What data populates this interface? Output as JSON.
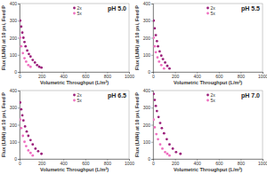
{
  "chart_data": [
    {
      "type": "scatter",
      "title": "pH 5.0",
      "x_label": "Volumetric Throughput (L/m²)",
      "y_label": "Flux (LMH) at 10 psi, Feed P",
      "xlim": [
        0,
        1000
      ],
      "ylim": [
        0,
        400
      ],
      "xticks": [
        0,
        200,
        400,
        600,
        800,
        1000
      ],
      "yticks": [
        0,
        100,
        200,
        300,
        400
      ],
      "legend": "top-right",
      "series": [
        {
          "name": "2x",
          "color": "#9b1f7a",
          "marker": "circle",
          "x": [
            5,
            15,
            25,
            35,
            45,
            55,
            70,
            85,
            100,
            120,
            140,
            160,
            180,
            200
          ],
          "values": [
            300,
            265,
            230,
            200,
            175,
            150,
            125,
            105,
            90,
            70,
            55,
            40,
            30,
            25
          ]
        },
        {
          "name": "5x",
          "color": "#ef6fc0",
          "marker": "circle",
          "x": [
            5,
            15,
            30,
            45,
            60,
            80,
            100
          ],
          "values": [
            200,
            150,
            110,
            80,
            60,
            40,
            30
          ]
        }
      ]
    },
    {
      "type": "scatter",
      "title": "pH 5.5",
      "x_label": "Volumetric Throughput (L/m²)",
      "y_label": "Flux (LMH) at 10 psi, Feed P",
      "xlim": [
        0,
        1000
      ],
      "ylim": [
        0,
        400
      ],
      "xticks": [
        0,
        200,
        400,
        600,
        800,
        1000
      ],
      "yticks": [
        0,
        100,
        200,
        300,
        400
      ],
      "legend": "top-right",
      "series": [
        {
          "name": "2x",
          "color": "#9b1f7a",
          "marker": "circle",
          "x": [
            5,
            15,
            25,
            35,
            45,
            60,
            75,
            90,
            110,
            130,
            150
          ],
          "values": [
            300,
            255,
            215,
            180,
            150,
            120,
            95,
            75,
            55,
            35,
            20
          ]
        },
        {
          "name": "5x",
          "color": "#ef6fc0",
          "marker": "circle",
          "x": [
            5,
            15,
            25,
            40,
            55,
            75,
            100
          ],
          "values": [
            200,
            150,
            115,
            85,
            60,
            40,
            20
          ]
        }
      ]
    },
    {
      "type": "scatter",
      "title": "pH 6.5",
      "x_label": "Volumetric Throughput (L/m²)",
      "y_label": "Flux (LMH) at 10 psi, Feed P",
      "xlim": [
        0,
        1000
      ],
      "ylim": [
        0,
        400
      ],
      "xticks": [
        0,
        200,
        400,
        600,
        800,
        1000
      ],
      "yticks": [
        0,
        100,
        200,
        300,
        400
      ],
      "legend": "top-right",
      "series": [
        {
          "name": "2x",
          "color": "#9b1f7a",
          "marker": "circle",
          "x": [
            5,
            15,
            25,
            35,
            50,
            65,
            80,
            100,
            120,
            145,
            170,
            200
          ],
          "values": [
            330,
            290,
            255,
            225,
            190,
            160,
            135,
            110,
            85,
            60,
            45,
            30
          ]
        },
        {
          "name": "5x",
          "color": "#ef6fc0",
          "marker": "circle",
          "x": [
            5,
            15,
            30,
            45,
            60,
            80,
            100,
            120
          ],
          "values": [
            230,
            180,
            135,
            100,
            75,
            50,
            35,
            20
          ]
        }
      ]
    },
    {
      "type": "scatter",
      "title": "pH 7.0",
      "x_label": "Volumetric Throughput (L/m²)",
      "y_label": "Flux (LMH) at 10 psi, Feed P",
      "xlim": [
        0,
        1000
      ],
      "ylim": [
        0,
        400
      ],
      "xticks": [
        0,
        200,
        400,
        600,
        800,
        1000
      ],
      "yticks": [
        0,
        100,
        200,
        300,
        400
      ],
      "legend": "top-right",
      "series": [
        {
          "name": "2x",
          "color": "#9b1f7a",
          "marker": "circle",
          "x": [
            5,
            15,
            25,
            35,
            50,
            65,
            80,
            100,
            125,
            150,
            180,
            210,
            250
          ],
          "values": [
            380,
            345,
            310,
            280,
            245,
            210,
            180,
            150,
            115,
            85,
            60,
            40,
            30
          ]
        },
        {
          "name": "5x",
          "color": "#ef6fc0",
          "marker": "circle",
          "x": [
            5,
            15,
            30,
            45,
            65,
            85,
            110,
            130,
            150
          ],
          "values": [
            230,
            185,
            145,
            115,
            85,
            60,
            40,
            30,
            20
          ]
        }
      ]
    }
  ]
}
